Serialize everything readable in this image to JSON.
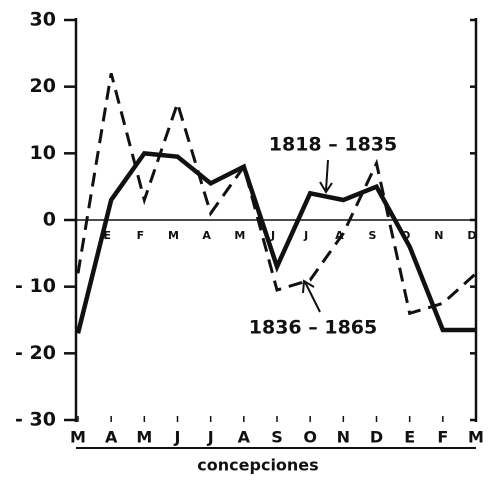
{
  "chart_data": {
    "type": "line",
    "xlabel": "concepciones",
    "categories": [
      "M",
      "A",
      "M",
      "J",
      "J",
      "A",
      "S",
      "O",
      "N",
      "D",
      "E",
      "F",
      "M"
    ],
    "inner_categories": [
      null,
      "E",
      "F",
      "M",
      "A",
      "M",
      "J",
      "J",
      "A",
      "S",
      "O",
      "N",
      "D"
    ],
    "series": [
      {
        "name": "1818 – 1835",
        "color": "#111111",
        "dash": false,
        "values": [
          -17,
          3,
          10,
          9.5,
          5.5,
          8,
          -7,
          4,
          3,
          5,
          -4,
          -16.5,
          -16.5
        ]
      },
      {
        "name": "1836 – 1865",
        "color": "#111111",
        "dash": true,
        "values": [
          -8,
          22,
          3,
          17.5,
          1,
          8,
          -10.5,
          -9,
          -2,
          8.5,
          -14,
          -12.5,
          -8
        ]
      }
    ],
    "ylim": [
      -30,
      30
    ],
    "yticks": [
      {
        "value": -30,
        "label": "- 30"
      },
      {
        "value": -20,
        "label": "- 20"
      },
      {
        "value": -10,
        "label": "- 10"
      },
      0,
      10,
      20,
      30
    ]
  }
}
